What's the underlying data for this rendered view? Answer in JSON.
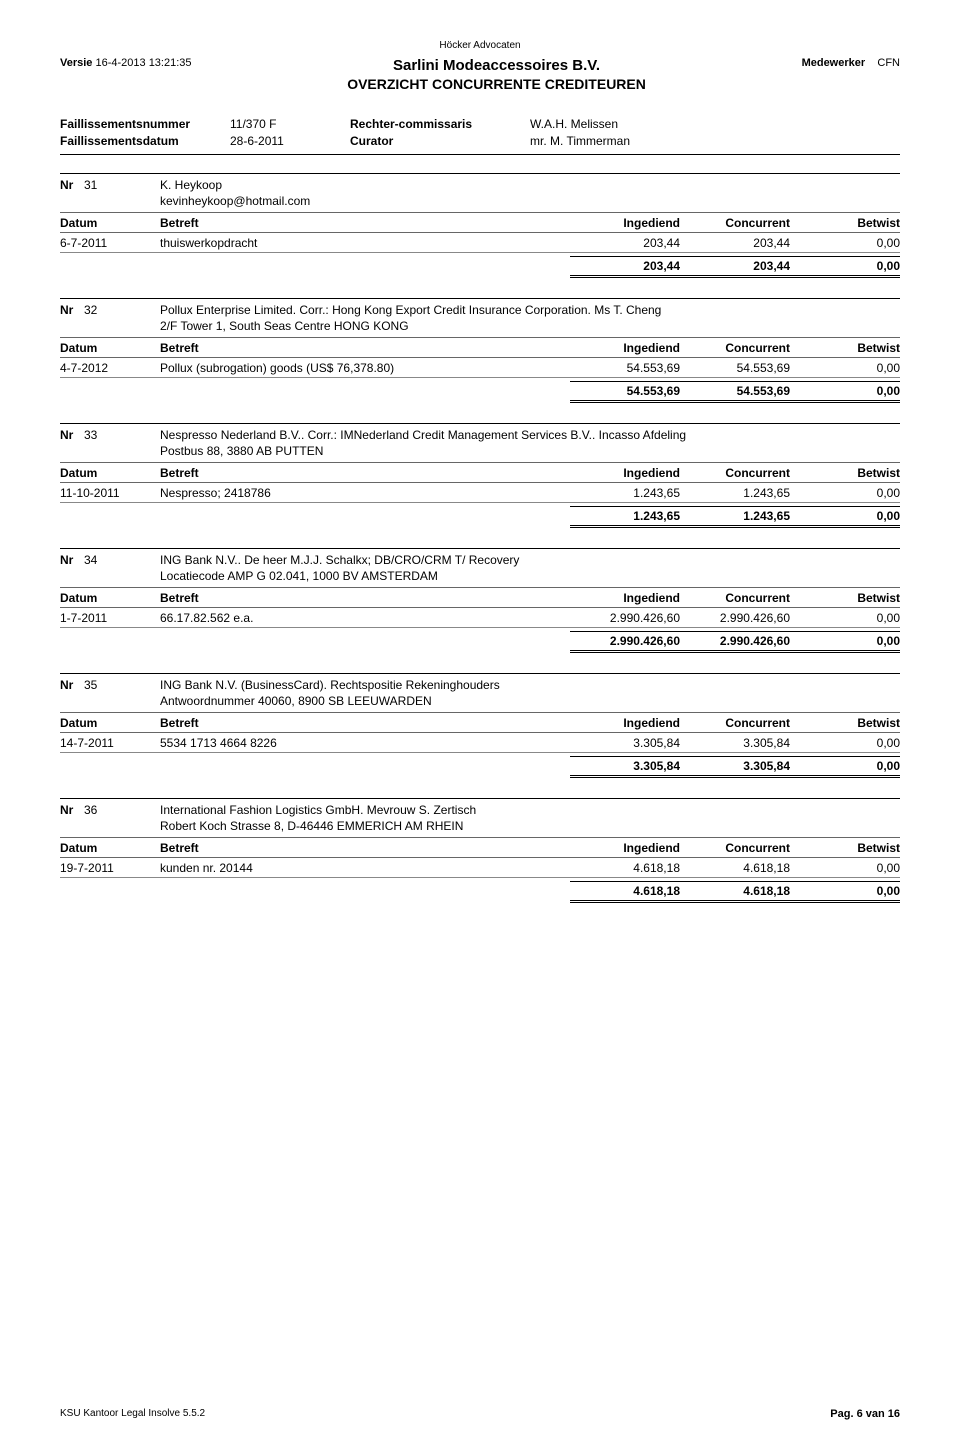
{
  "firm": "Höcker Advocaten",
  "versie_label": "Versie",
  "versie_value": "16-4-2013 13:21:35",
  "title1": "Sarlini Modeaccessoires B.V.",
  "title2": "OVERZICHT CONCURRENTE CREDITEUREN",
  "medewerker_label": "Medewerker",
  "medewerker_value": "CFN",
  "case": {
    "fn_label": "Faillissementsnummer",
    "fd_label": "Faillissementsdatum",
    "fn_value": "11/370 F",
    "fd_value": "28-6-2011",
    "rc_label": "Rechter-commissaris",
    "cu_label": "Curator",
    "rc_value": "W.A.H. Melissen",
    "cu_value": "mr. M. Timmerman"
  },
  "hdr": {
    "nr": "Nr",
    "datum": "Datum",
    "betreft": "Betreft",
    "ingediend": "Ingediend",
    "concurrent": "Concurrent",
    "betwist": "Betwist"
  },
  "creditors": [
    {
      "nr": "31",
      "name": "K. Heykoop",
      "addr": "kevinheykoop@hotmail.com",
      "rows": [
        {
          "datum": "6-7-2011",
          "betreft": "thuiswerkopdracht",
          "ingediend": "203,44",
          "concurrent": "203,44",
          "betwist": "0,00"
        }
      ],
      "total": {
        "ingediend": "203,44",
        "concurrent": "203,44",
        "betwist": "0,00"
      }
    },
    {
      "nr": "32",
      "name": "Pollux Enterprise Limited. Corr.: Hong Kong Export Credit Insurance Corporation. Ms T. Cheng",
      "addr": "2/F Tower 1, South Seas Centre HONG KONG",
      "rows": [
        {
          "datum": "4-7-2012",
          "betreft": "Pollux (subrogation) goods (US$ 76,378.80)",
          "ingediend": "54.553,69",
          "concurrent": "54.553,69",
          "betwist": "0,00"
        }
      ],
      "total": {
        "ingediend": "54.553,69",
        "concurrent": "54.553,69",
        "betwist": "0,00"
      }
    },
    {
      "nr": "33",
      "name": "Nespresso Nederland B.V.. Corr.: IMNederland Credit Management Services B.V.. Incasso Afdeling",
      "addr": "Postbus 88,  3880 AB PUTTEN",
      "rows": [
        {
          "datum": "11-10-2011",
          "betreft": "Nespresso; 2418786",
          "ingediend": "1.243,65",
          "concurrent": "1.243,65",
          "betwist": "0,00"
        }
      ],
      "total": {
        "ingediend": "1.243,65",
        "concurrent": "1.243,65",
        "betwist": "0,00"
      }
    },
    {
      "nr": "34",
      "name": "ING Bank N.V.. De heer M.J.J. Schalkx; DB/CRO/CRM T/ Recovery",
      "addr": "Locatiecode AMP G 02.041,  1000 BV AMSTERDAM",
      "rows": [
        {
          "datum": "1-7-2011",
          "betreft": "66.17.82.562 e.a.",
          "ingediend": "2.990.426,60",
          "concurrent": "2.990.426,60",
          "betwist": "0,00"
        }
      ],
      "total": {
        "ingediend": "2.990.426,60",
        "concurrent": "2.990.426,60",
        "betwist": "0,00"
      }
    },
    {
      "nr": "35",
      "name": "ING Bank N.V. (BusinessCard). Rechtspositie Rekeninghouders",
      "addr": "Antwoordnummer 40060,  8900 SB LEEUWARDEN",
      "rows": [
        {
          "datum": "14-7-2011",
          "betreft": "5534 1713 4664 8226",
          "ingediend": "3.305,84",
          "concurrent": "3.305,84",
          "betwist": "0,00"
        }
      ],
      "total": {
        "ingediend": "3.305,84",
        "concurrent": "3.305,84",
        "betwist": "0,00"
      }
    },
    {
      "nr": "36",
      "name": "International Fashion Logistics GmbH. Mevrouw S. Zertisch",
      "addr": "Robert Koch Strasse 8,  D-46446 EMMERICH AM RHEIN",
      "rows": [
        {
          "datum": "19-7-2011",
          "betreft": "kunden nr. 20144",
          "ingediend": "4.618,18",
          "concurrent": "4.618,18",
          "betwist": "0,00"
        }
      ],
      "total": {
        "ingediend": "4.618,18",
        "concurrent": "4.618,18",
        "betwist": "0,00"
      }
    }
  ],
  "footer": {
    "left": "KSU Kantoor  Legal Insolve 5.5.2",
    "right": "Pag. 6 van 16"
  }
}
